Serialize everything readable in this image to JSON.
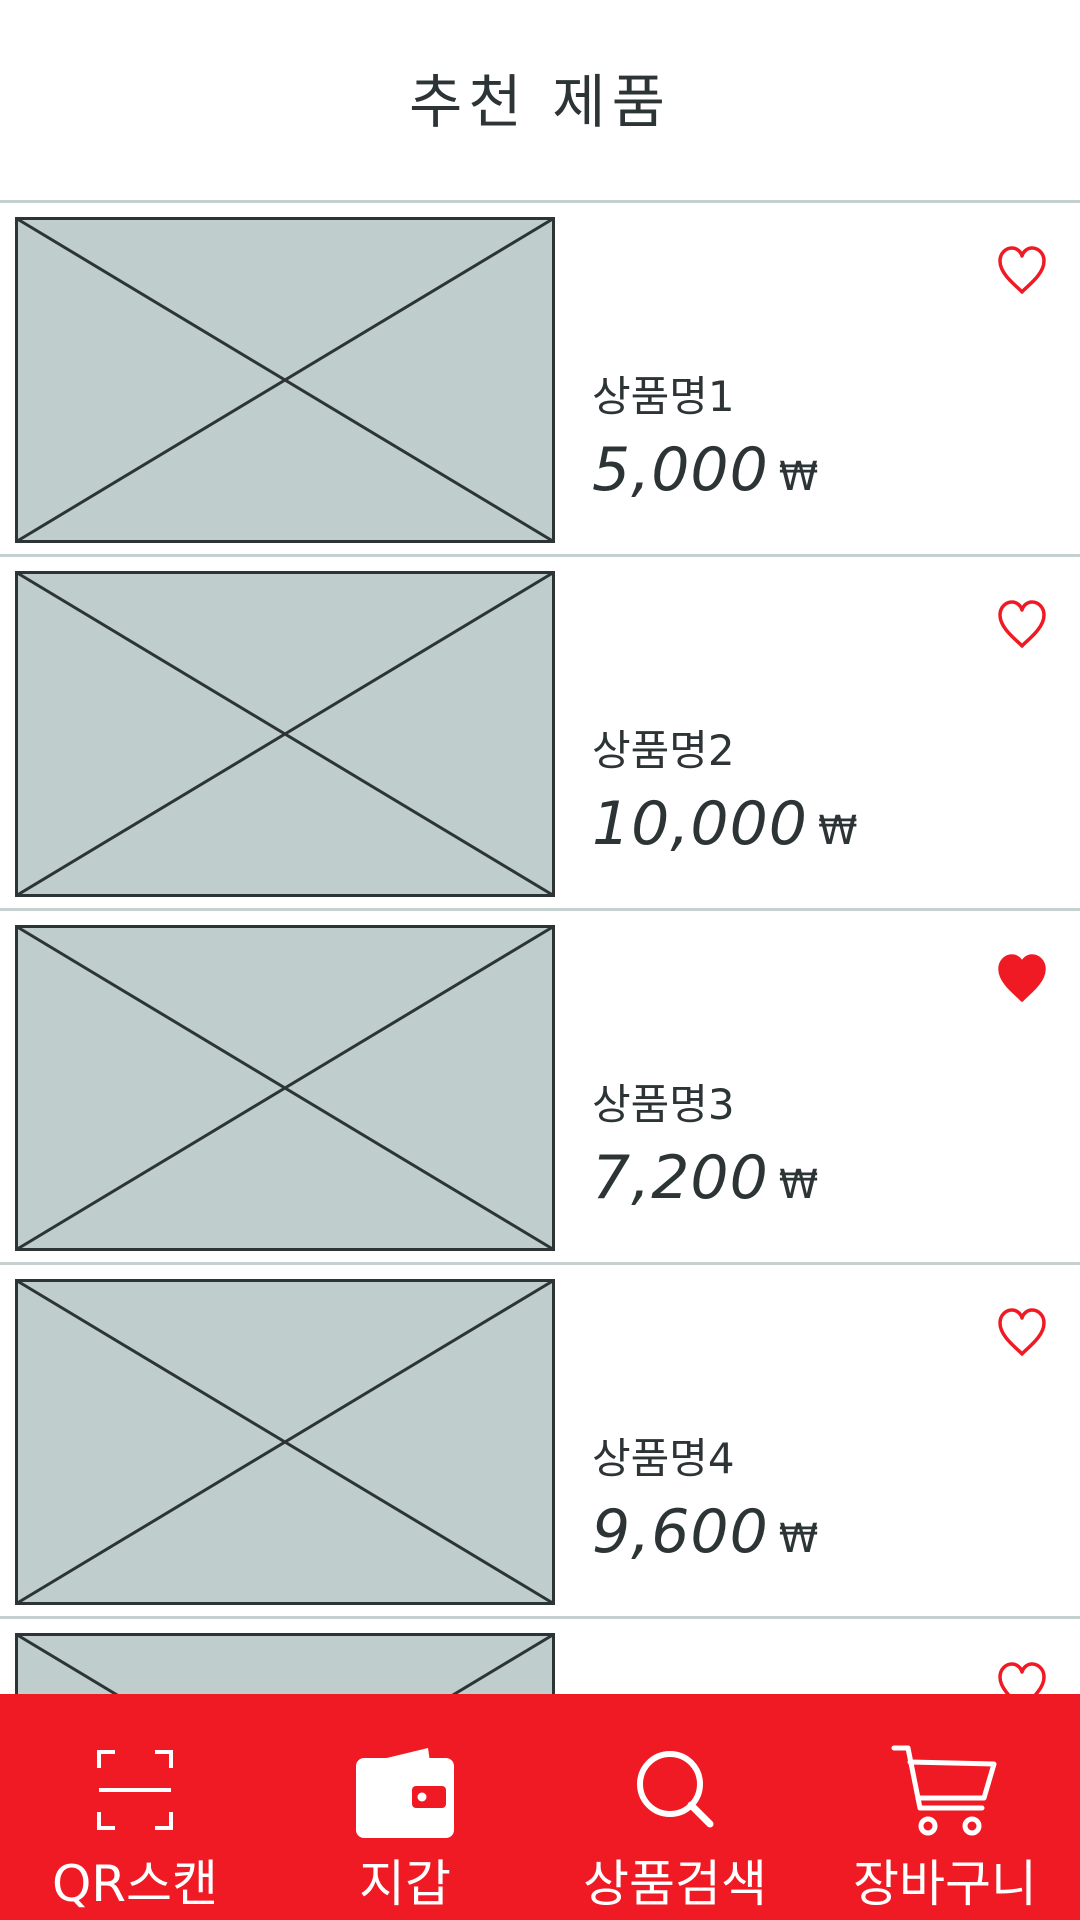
{
  "header": {
    "title": "추천 제품"
  },
  "products": [
    {
      "name": "상품명1",
      "price": "5,000",
      "currency": "₩",
      "favorite": false
    },
    {
      "name": "상품명2",
      "price": "10,000",
      "currency": "₩",
      "favorite": false
    },
    {
      "name": "상품명3",
      "price": "7,200",
      "currency": "₩",
      "favorite": true
    },
    {
      "name": "상품명4",
      "price": "9,600",
      "currency": "₩",
      "favorite": false
    },
    {
      "name": "",
      "price": "",
      "currency": "",
      "favorite": false
    }
  ],
  "tabbar": {
    "items": [
      {
        "label": "QR스캔",
        "icon": "qr-scan-icon"
      },
      {
        "label": "지갑",
        "icon": "wallet-icon"
      },
      {
        "label": "상품검색",
        "icon": "search-icon"
      },
      {
        "label": "장바구니",
        "icon": "cart-icon"
      }
    ]
  },
  "colors": {
    "accent": "#ef1a23",
    "text": "#2d3436",
    "placeholder_fill": "#bfcdcd",
    "divider": "#c5d0d0"
  }
}
